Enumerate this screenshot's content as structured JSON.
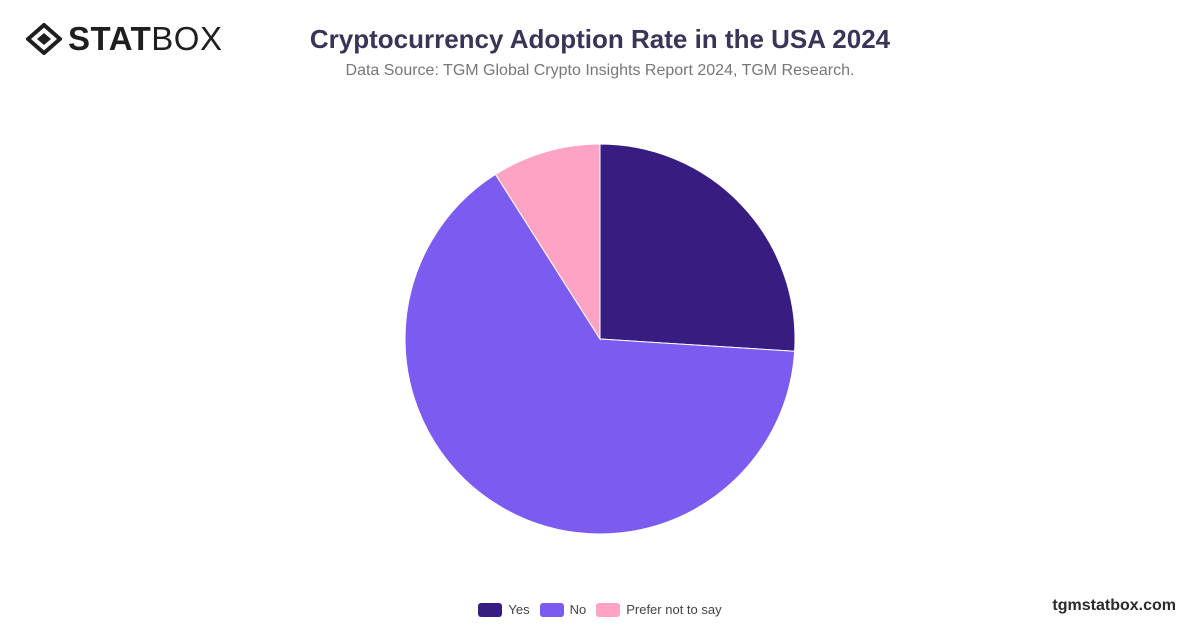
{
  "brand": {
    "logo_bold": "STAT",
    "logo_light": "BOX",
    "watermark": "tgmstatbox.com"
  },
  "colors": {
    "yes": "#371d82",
    "no": "#7c5cf0",
    "prefer": "#ffa3c4"
  },
  "chart_data": {
    "type": "pie",
    "title": "Cryptocurrency Adoption Rate in the USA 2024",
    "subtitle": "Data Source: TGM Global Crypto Insights Report 2024, TGM Research.",
    "categories": [
      "Yes",
      "No",
      "Prefer not to say"
    ],
    "values": [
      26,
      65,
      9
    ],
    "legend_position": "bottom"
  }
}
